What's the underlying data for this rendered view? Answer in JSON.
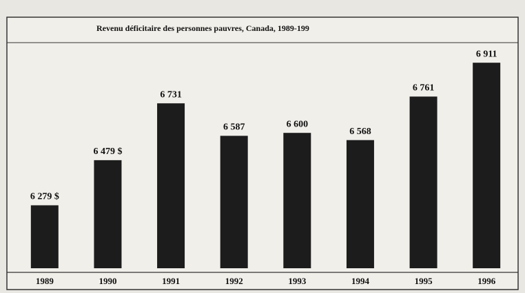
{
  "chart_data": {
    "type": "bar",
    "title": "Revenu déficitaire des personnes pauvres, Canada, 1989-199",
    "categories": [
      "1989",
      "1990",
      "1991",
      "1992",
      "1993",
      "1994",
      "1995",
      "1996"
    ],
    "values": [
      6279,
      6479,
      6731,
      6587,
      6600,
      6568,
      6761,
      6911
    ],
    "value_labels": [
      "6 279 $",
      "6 479 $",
      "6 731",
      "6 587",
      "6 600",
      "6 568",
      "6 761",
      "6 911"
    ],
    "color": "#1c1c1c",
    "ylim": [
      6000,
      7000
    ]
  }
}
